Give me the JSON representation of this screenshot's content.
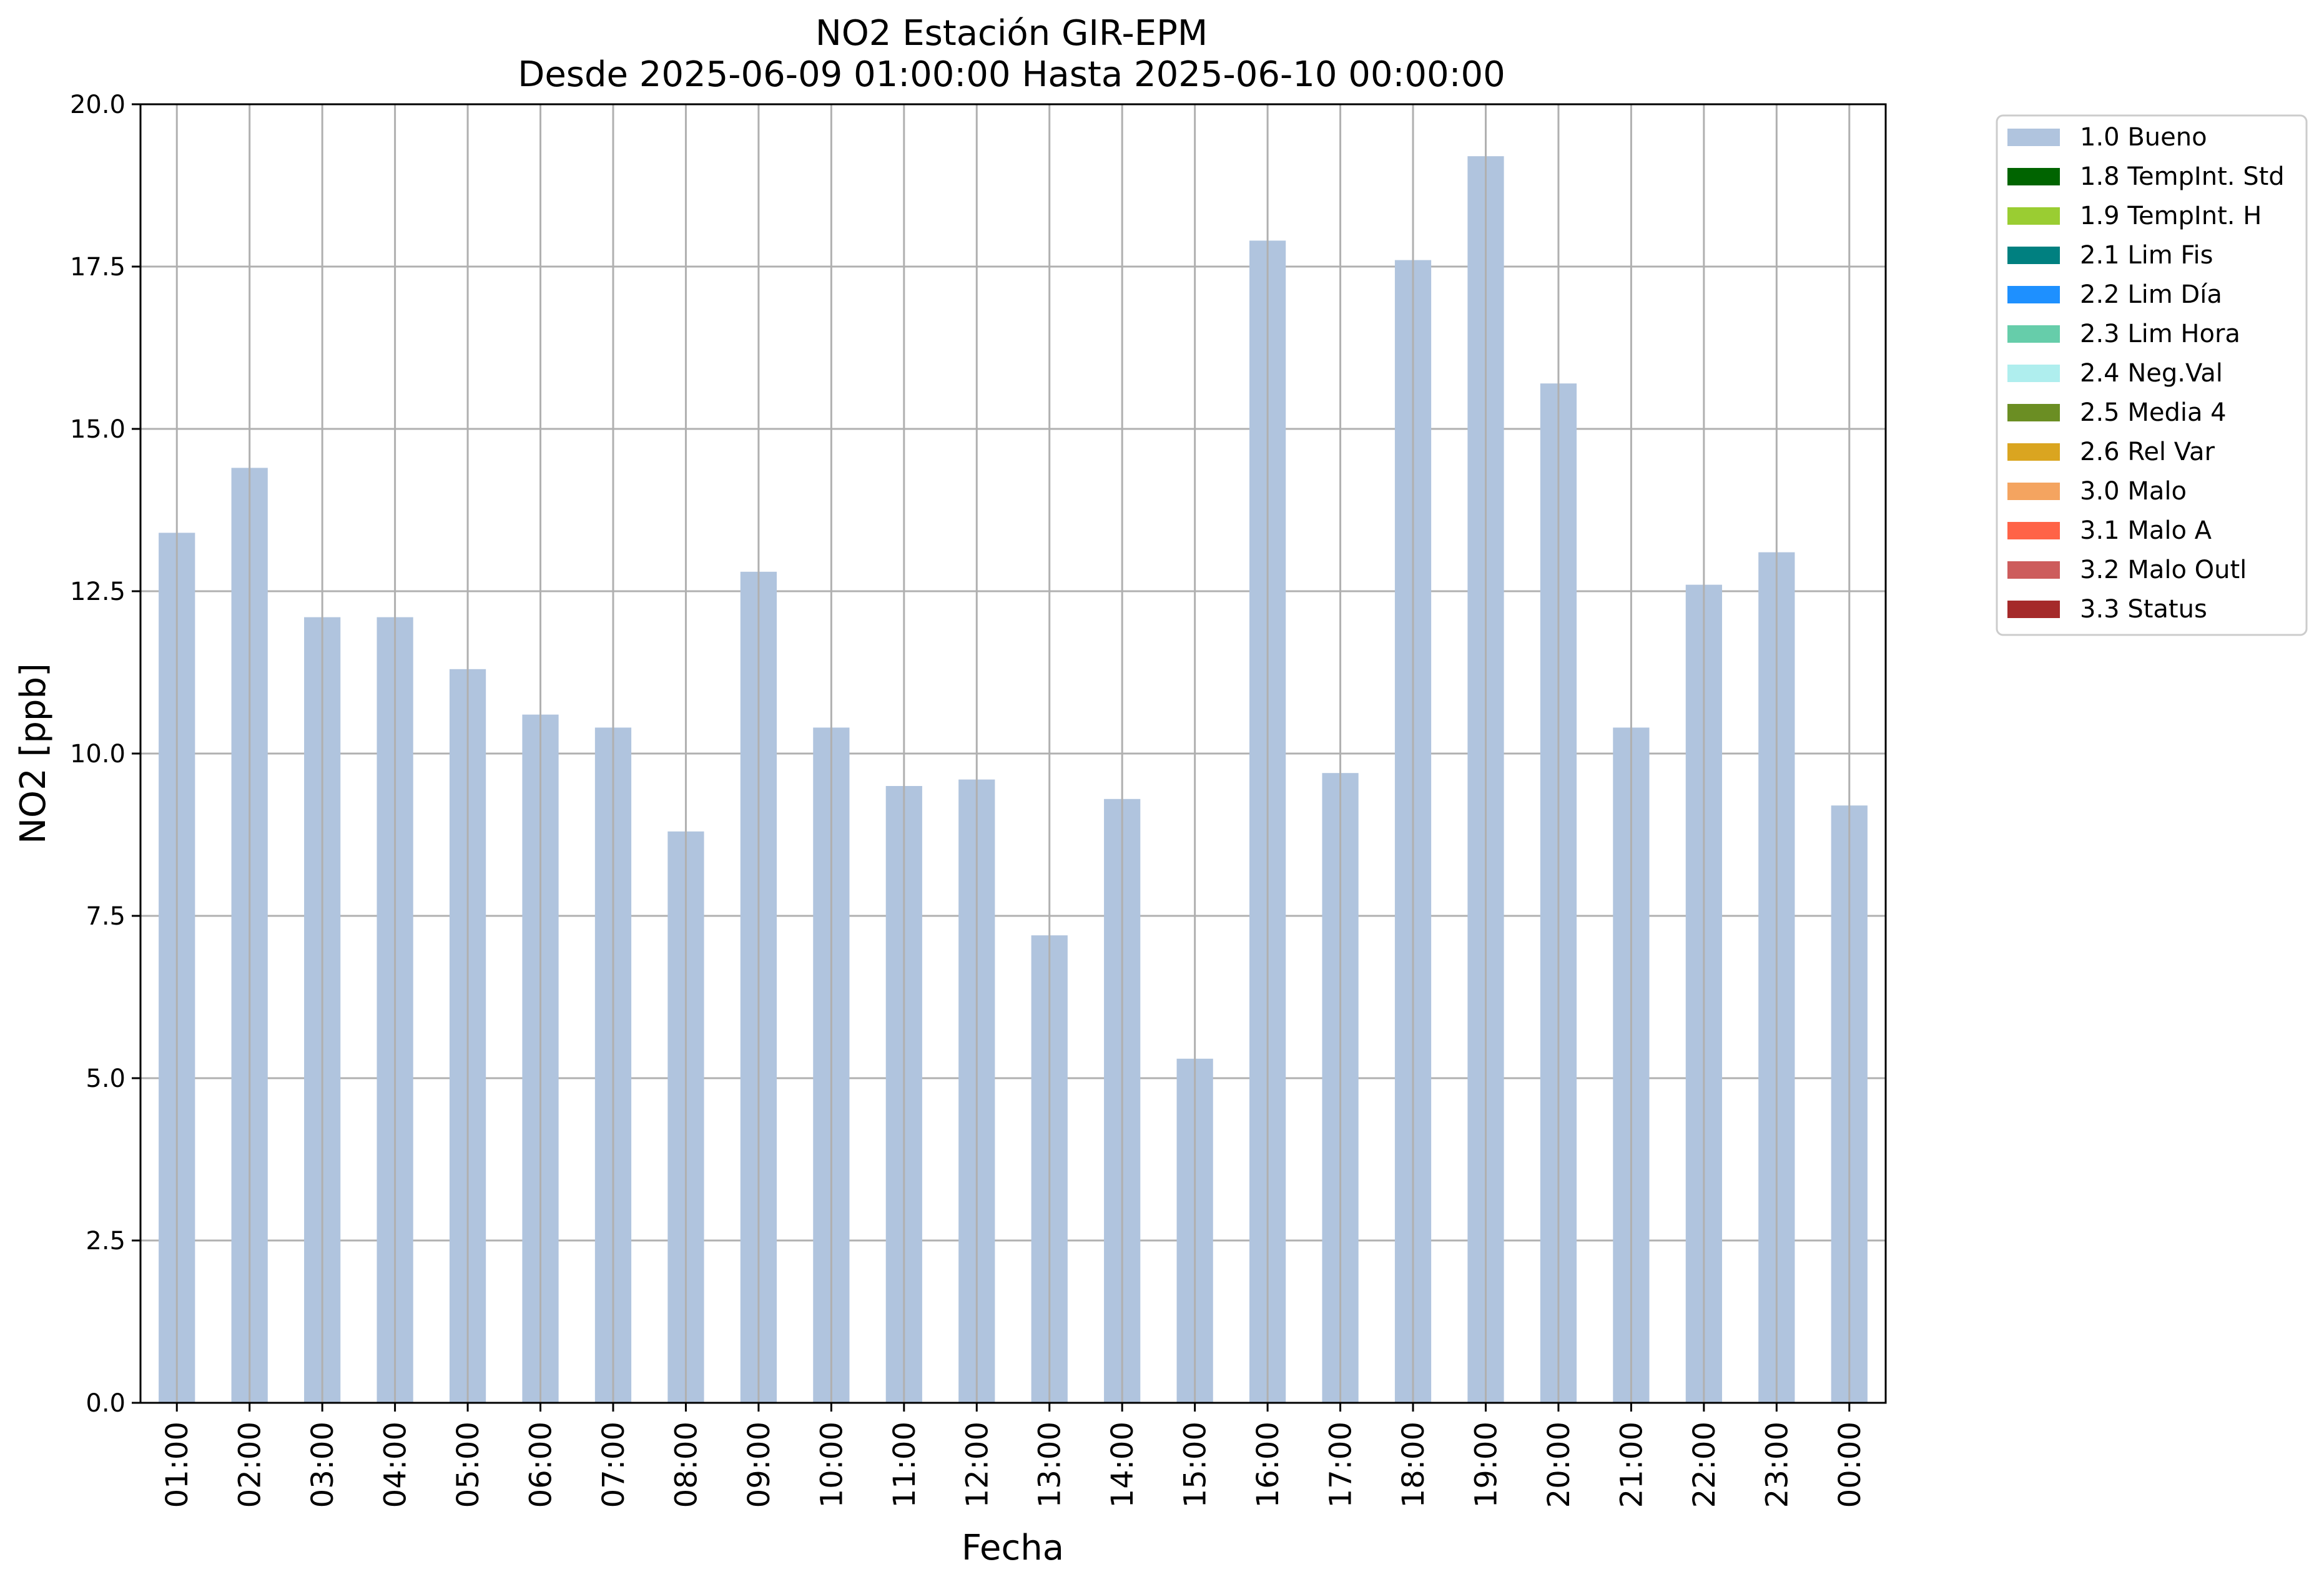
{
  "chart_data": {
    "type": "bar",
    "title": "NO2 Estación GIR-EPM",
    "subtitle": "Desde 2025-06-09 01:00:00 Hasta 2025-06-10 00:00:00",
    "xlabel": "Fecha",
    "ylabel": "NO2 [ppb]",
    "ylim": [
      0,
      20
    ],
    "yticks": [
      "0.0",
      "2.5",
      "5.0",
      "7.5",
      "10.0",
      "12.5",
      "15.0",
      "17.5",
      "20.0"
    ],
    "grid": true,
    "legend_position": "outside-top-right",
    "categories": [
      "01:00",
      "02:00",
      "03:00",
      "04:00",
      "05:00",
      "06:00",
      "07:00",
      "08:00",
      "09:00",
      "10:00",
      "11:00",
      "12:00",
      "13:00",
      "14:00",
      "15:00",
      "16:00",
      "17:00",
      "18:00",
      "19:00",
      "20:00",
      "21:00",
      "22:00",
      "23:00",
      "00:00"
    ],
    "series": [
      {
        "name": "1.0 Bueno",
        "color": "#b0c4de",
        "values": [
          13.4,
          14.4,
          12.1,
          12.1,
          11.3,
          10.6,
          10.4,
          8.8,
          12.8,
          10.4,
          9.5,
          9.6,
          7.2,
          9.3,
          5.3,
          17.9,
          9.7,
          17.6,
          19.2,
          15.7,
          10.4,
          12.6,
          13.1,
          9.2
        ]
      }
    ],
    "legend": [
      {
        "label": "1.0 Bueno",
        "color": "#b0c4de"
      },
      {
        "label": "1.8 TempInt. Std",
        "color": "#006400"
      },
      {
        "label": "1.9 TempInt. H",
        "color": "#9acd32"
      },
      {
        "label": "2.1 Lim Fis",
        "color": "#008080"
      },
      {
        "label": "2.2 Lim Día",
        "color": "#1e90ff"
      },
      {
        "label": "2.3 Lim Hora",
        "color": "#66cdaa"
      },
      {
        "label": "2.4 Neg.Val",
        "color": "#afeeee"
      },
      {
        "label": "2.5 Media 4",
        "color": "#6b8e23"
      },
      {
        "label": "2.6 Rel Var",
        "color": "#daa520"
      },
      {
        "label": "3.0 Malo",
        "color": "#f4a460"
      },
      {
        "label": "3.1 Malo A",
        "color": "#ff6347"
      },
      {
        "label": "3.2 Malo Outl",
        "color": "#cd5c5c"
      },
      {
        "label": "3.3 Status",
        "color": "#a52a2a"
      }
    ]
  }
}
